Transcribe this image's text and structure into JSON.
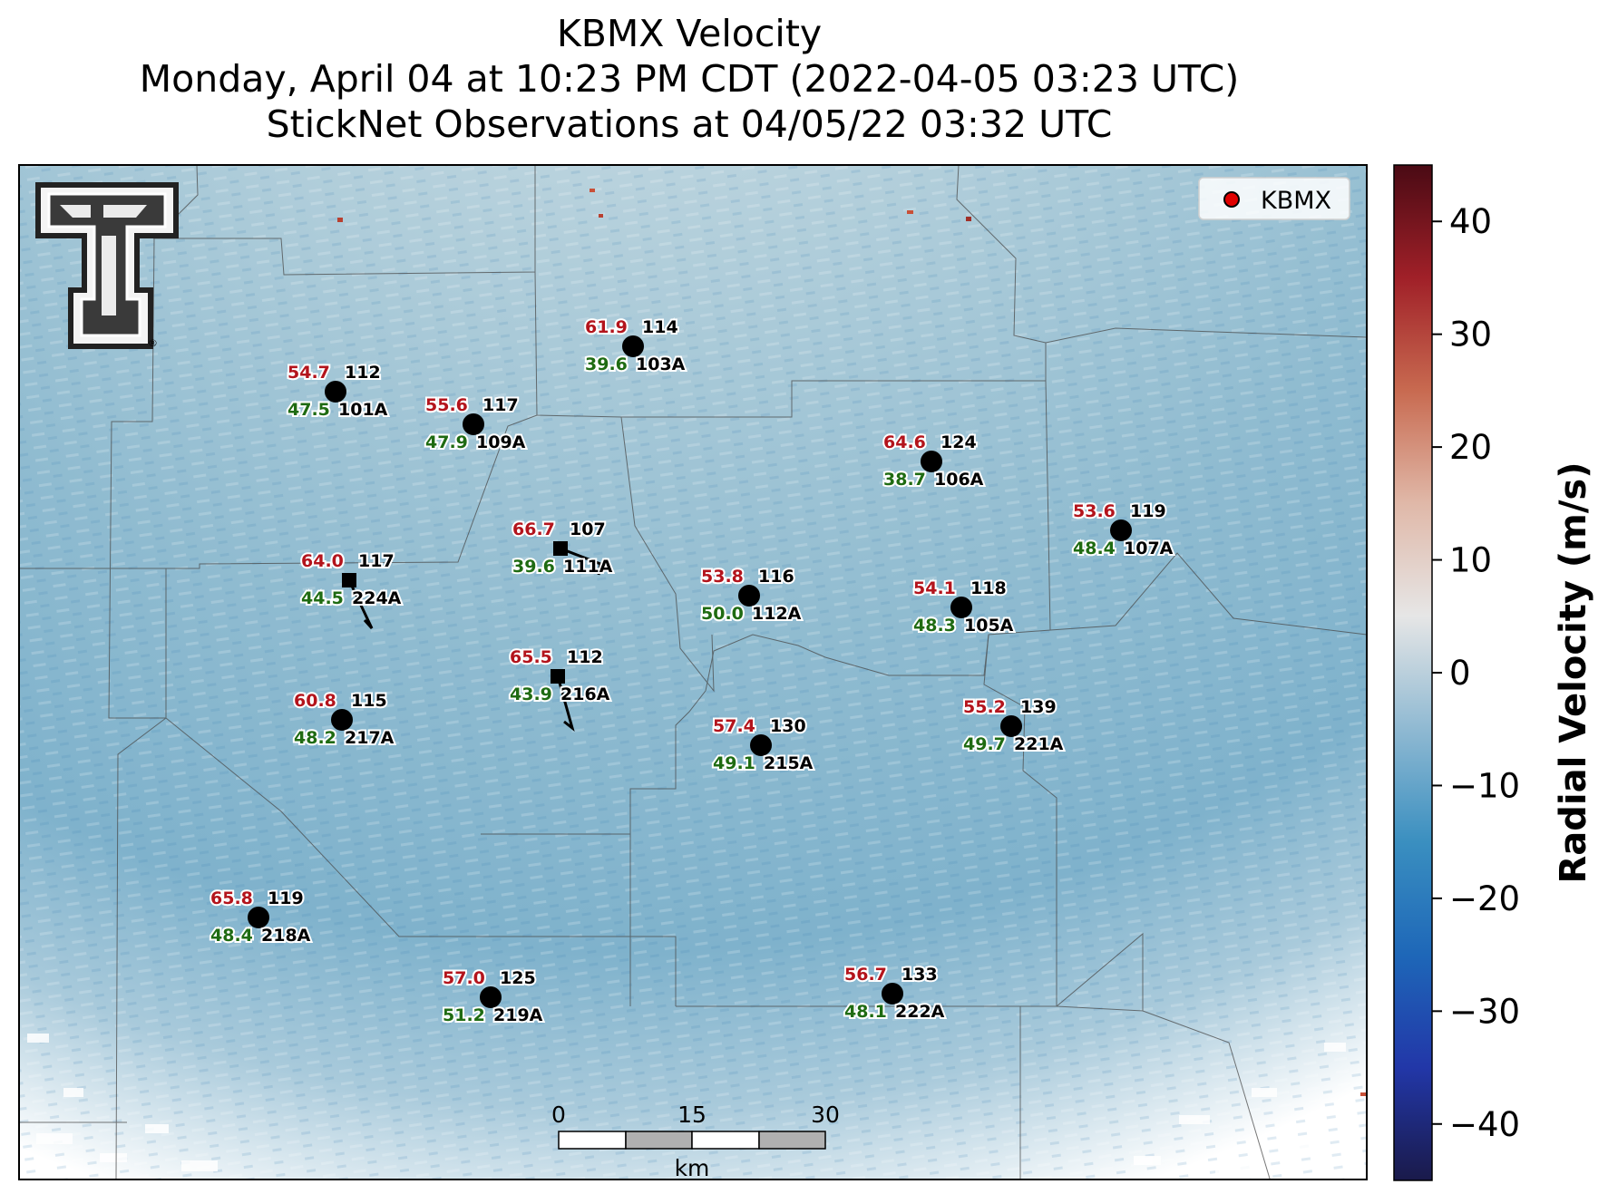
{
  "title": {
    "line1": "KBMX Velocity",
    "line2": "Monday, April 04 at 10:23 PM CDT (2022-04-05 03:23 UTC)",
    "line3": "StickNet Observations at 04/05/22 03:32 UTC"
  },
  "legend": {
    "label": "KBMX",
    "marker_color": "#e00000"
  },
  "colorbar": {
    "label": "Radial Velocity (m/s)",
    "ticks": [
      "40",
      "30",
      "20",
      "10",
      "0",
      "−10",
      "−20",
      "−30",
      "−40"
    ],
    "range": [
      -45,
      45
    ],
    "colors": [
      "#1a1a4a",
      "#2237a8",
      "#1e67b8",
      "#3a8fc0",
      "#8fb9d2",
      "#e6e6e6",
      "#e0b8a8",
      "#c86a50",
      "#a02028",
      "#4a0a14"
    ]
  },
  "scale_bar": {
    "labels": [
      "0",
      "15",
      "30"
    ],
    "unit": "km"
  },
  "logo": {
    "name": "texas-tech-double-t-logo",
    "mark": "®"
  },
  "stations": [
    {
      "id": "101A",
      "gust": "54.7",
      "dir": "112",
      "speed": "47.5",
      "marker": "circle"
    },
    {
      "id": "109A",
      "gust": "55.6",
      "dir": "117",
      "speed": "47.9",
      "marker": "circle"
    },
    {
      "id": "103A",
      "gust": "61.9",
      "dir": "114",
      "speed": "39.6",
      "marker": "circle"
    },
    {
      "id": "106A",
      "gust": "64.6",
      "dir": "124",
      "speed": "38.7",
      "marker": "circle"
    },
    {
      "id": "107A",
      "gust": "53.6",
      "dir": "119",
      "speed": "48.4",
      "marker": "circle"
    },
    {
      "id": "111A",
      "gust": "66.7",
      "dir": "107",
      "speed": "39.6",
      "marker": "square"
    },
    {
      "id": "224A",
      "gust": "64.0",
      "dir": "117",
      "speed": "44.5",
      "marker": "square"
    },
    {
      "id": "112A",
      "gust": "53.8",
      "dir": "116",
      "speed": "50.0",
      "marker": "circle"
    },
    {
      "id": "105A",
      "gust": "54.1",
      "dir": "118",
      "speed": "48.3",
      "marker": "circle"
    },
    {
      "id": "216A",
      "gust": "65.5",
      "dir": "112",
      "speed": "43.9",
      "marker": "square"
    },
    {
      "id": "217A",
      "gust": "60.8",
      "dir": "115",
      "speed": "48.2",
      "marker": "circle"
    },
    {
      "id": "215A",
      "gust": "57.4",
      "dir": "130",
      "speed": "49.1",
      "marker": "circle"
    },
    {
      "id": "221A",
      "gust": "55.2",
      "dir": "139",
      "speed": "49.7",
      "marker": "circle"
    },
    {
      "id": "218A",
      "gust": "65.8",
      "dir": "119",
      "speed": "48.4",
      "marker": "circle"
    },
    {
      "id": "219A",
      "gust": "57.0",
      "dir": "125",
      "speed": "51.2",
      "marker": "circle"
    },
    {
      "id": "222A",
      "gust": "56.7",
      "dir": "133",
      "speed": "48.1",
      "marker": "circle"
    }
  ]
}
